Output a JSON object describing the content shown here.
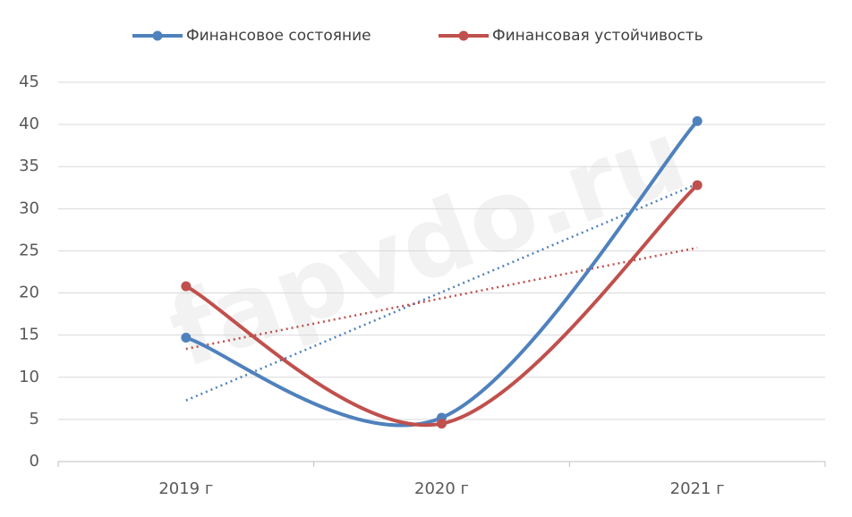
{
  "chart_data": {
    "type": "line",
    "watermark": "fapvdo.ru",
    "categories": [
      "2019 г",
      "2020 г",
      "2021 г"
    ],
    "series": [
      {
        "name": "Финансовое состояние",
        "color": "#4f81bd",
        "values": [
          14.7,
          5.2,
          40.4
        ]
      },
      {
        "name": "Финансовая устойчивость",
        "color": "#c0504d",
        "values": [
          20.8,
          4.5,
          32.8
        ]
      }
    ],
    "ylim": [
      0,
      45
    ],
    "yticks": [
      0,
      5,
      10,
      15,
      20,
      25,
      30,
      35,
      40,
      45
    ],
    "grid": true,
    "smooth": true,
    "trendline": true,
    "legend": "top"
  }
}
